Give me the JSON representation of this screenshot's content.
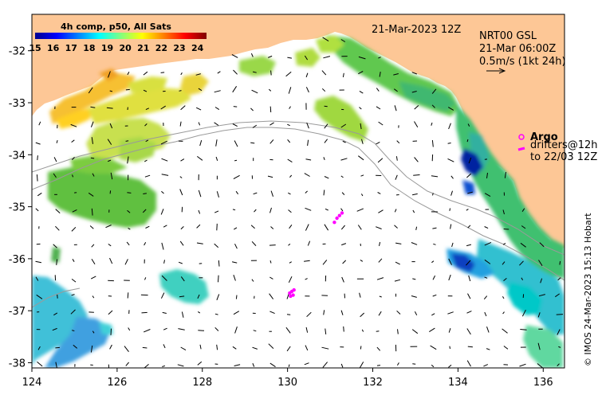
{
  "map": {
    "title": "21-Mar-2023 12Z",
    "product": "NRT00 GSL",
    "time": "21-Mar 06:00Z",
    "current_scale": "0.5m/s (1kt 24h)",
    "credit": "© IMOS 24-Mar-2023 15:13 Hobart",
    "extent": {
      "lon_min": 124,
      "lon_max": 136.5,
      "lat_min": -38.1,
      "lat_max": -31.3
    },
    "lon_ticks": [
      "124",
      "126",
      "128",
      "130",
      "132",
      "134",
      "136"
    ],
    "lat_ticks": [
      "-32",
      "-33",
      "-34",
      "-35",
      "-36",
      "-37",
      "-38"
    ]
  },
  "colorbar": {
    "title": "4h comp, p50, All Sats",
    "labels": [
      "15",
      "16",
      "17",
      "18",
      "19",
      "20",
      "21",
      "22",
      "23",
      "24"
    ],
    "min": 15,
    "max": 24.5,
    "colors": [
      "#00008f",
      "#0000ff",
      "#0080ff",
      "#00ffff",
      "#80ff80",
      "#ffff00",
      "#ff8000",
      "#ff0000",
      "#800000"
    ]
  },
  "legend": {
    "argo_label": "Argo",
    "drifters_label": "drifters@12h",
    "drifters_to": "to 22/03 12Z",
    "marker_color": "#ff00ff"
  },
  "colors": {
    "land": "#fdc796",
    "sea": "#ffffff",
    "isobath": "#9a9a9a"
  }
}
